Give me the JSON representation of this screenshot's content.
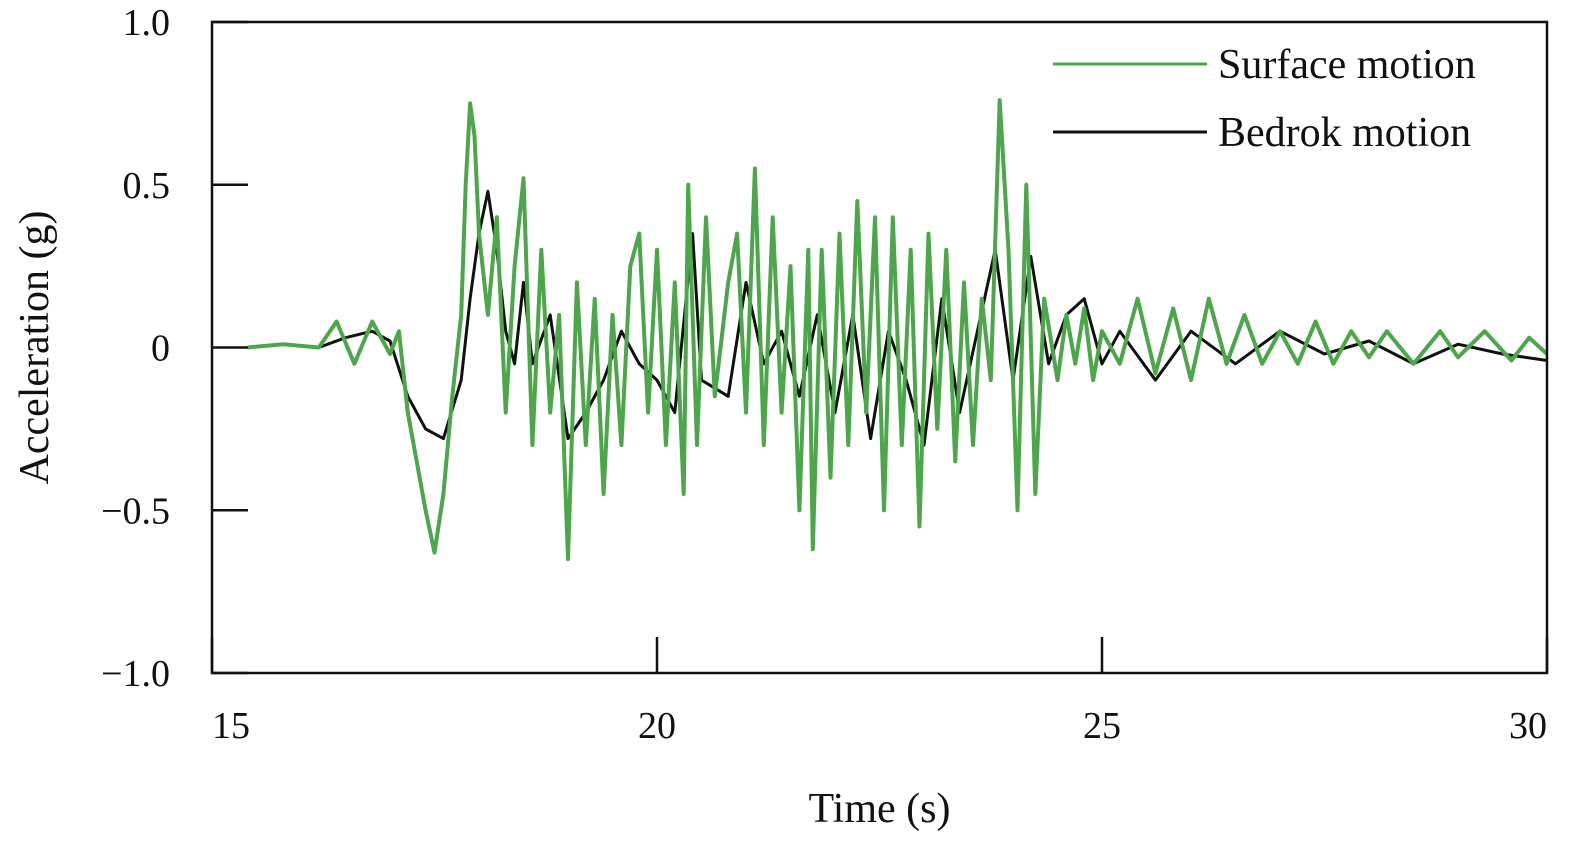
{
  "chart_data": {
    "type": "line",
    "title": "",
    "xlabel": "Time (s)",
    "ylabel": "Acceleration (g)",
    "xlim": [
      15,
      30
    ],
    "ylim": [
      -1.0,
      1.0
    ],
    "xticks": [
      {
        "value": 15,
        "label": "15"
      },
      {
        "value": 20,
        "label": "20"
      },
      {
        "value": 25,
        "label": "25"
      },
      {
        "value": 30,
        "label": "30"
      }
    ],
    "yticks": [
      {
        "value": 1.0,
        "label": "1.0"
      },
      {
        "value": 0.5,
        "label": "0.5"
      },
      {
        "value": 0,
        "label": "0"
      },
      {
        "value": -0.5,
        "label": "−0.5"
      },
      {
        "value": -1.0,
        "label": "−1.0"
      }
    ],
    "grid": false,
    "legend_position": "top-right",
    "series": [
      {
        "name": "Bedrok motion",
        "color": "#111111",
        "points": [
          [
            15.4,
            0
          ],
          [
            15.8,
            0.01
          ],
          [
            16.2,
            0
          ],
          [
            16.5,
            0.03
          ],
          [
            16.8,
            0.05
          ],
          [
            17.0,
            0.02
          ],
          [
            17.2,
            -0.15
          ],
          [
            17.4,
            -0.25
          ],
          [
            17.6,
            -0.28
          ],
          [
            17.8,
            -0.1
          ],
          [
            17.9,
            0.15
          ],
          [
            18.0,
            0.35
          ],
          [
            18.1,
            0.48
          ],
          [
            18.2,
            0.3
          ],
          [
            18.3,
            0.05
          ],
          [
            18.4,
            -0.05
          ],
          [
            18.5,
            0.2
          ],
          [
            18.6,
            -0.05
          ],
          [
            18.8,
            0.1
          ],
          [
            19.0,
            -0.28
          ],
          [
            19.2,
            -0.2
          ],
          [
            19.4,
            -0.1
          ],
          [
            19.6,
            0.05
          ],
          [
            19.8,
            -0.05
          ],
          [
            20.0,
            -0.1
          ],
          [
            20.2,
            -0.2
          ],
          [
            20.4,
            0.35
          ],
          [
            20.5,
            -0.1
          ],
          [
            20.8,
            -0.15
          ],
          [
            21.0,
            0.2
          ],
          [
            21.2,
            -0.05
          ],
          [
            21.4,
            0.05
          ],
          [
            21.6,
            -0.15
          ],
          [
            21.8,
            0.1
          ],
          [
            22.0,
            -0.2
          ],
          [
            22.2,
            0.1
          ],
          [
            22.4,
            -0.28
          ],
          [
            22.6,
            0.05
          ],
          [
            22.8,
            -0.1
          ],
          [
            23.0,
            -0.3
          ],
          [
            23.2,
            0.15
          ],
          [
            23.4,
            -0.2
          ],
          [
            23.6,
            0.05
          ],
          [
            23.8,
            0.3
          ],
          [
            24.0,
            -0.1
          ],
          [
            24.2,
            0.28
          ],
          [
            24.4,
            -0.05
          ],
          [
            24.6,
            0.1
          ],
          [
            24.8,
            0.15
          ],
          [
            25.0,
            -0.05
          ],
          [
            25.2,
            0.05
          ],
          [
            25.6,
            -0.1
          ],
          [
            26.0,
            0.05
          ],
          [
            26.5,
            -0.05
          ],
          [
            27.0,
            0.05
          ],
          [
            27.5,
            -0.02
          ],
          [
            28.0,
            0.02
          ],
          [
            28.5,
            -0.05
          ],
          [
            29.0,
            0.01
          ],
          [
            29.5,
            -0.02
          ],
          [
            30.0,
            -0.04
          ]
        ]
      },
      {
        "name": "Surface motion",
        "color": "#4ca64a",
        "points": [
          [
            15.4,
            0
          ],
          [
            15.8,
            0.01
          ],
          [
            16.2,
            0
          ],
          [
            16.4,
            0.08
          ],
          [
            16.6,
            -0.05
          ],
          [
            16.8,
            0.08
          ],
          [
            17.0,
            -0.02
          ],
          [
            17.1,
            0.05
          ],
          [
            17.2,
            -0.2
          ],
          [
            17.3,
            -0.35
          ],
          [
            17.4,
            -0.5
          ],
          [
            17.5,
            -0.63
          ],
          [
            17.6,
            -0.45
          ],
          [
            17.7,
            -0.15
          ],
          [
            17.8,
            0.1
          ],
          [
            17.85,
            0.5
          ],
          [
            17.9,
            0.75
          ],
          [
            17.95,
            0.65
          ],
          [
            18.0,
            0.35
          ],
          [
            18.1,
            0.1
          ],
          [
            18.2,
            0.4
          ],
          [
            18.3,
            -0.2
          ],
          [
            18.4,
            0.25
          ],
          [
            18.5,
            0.52
          ],
          [
            18.6,
            -0.3
          ],
          [
            18.7,
            0.3
          ],
          [
            18.8,
            -0.2
          ],
          [
            18.9,
            0.1
          ],
          [
            19.0,
            -0.65
          ],
          [
            19.1,
            0.2
          ],
          [
            19.2,
            -0.3
          ],
          [
            19.3,
            0.15
          ],
          [
            19.4,
            -0.45
          ],
          [
            19.5,
            0.1
          ],
          [
            19.6,
            -0.3
          ],
          [
            19.7,
            0.25
          ],
          [
            19.8,
            0.35
          ],
          [
            19.9,
            -0.2
          ],
          [
            20.0,
            0.3
          ],
          [
            20.1,
            -0.3
          ],
          [
            20.2,
            0.2
          ],
          [
            20.3,
            -0.45
          ],
          [
            20.35,
            0.5
          ],
          [
            20.45,
            -0.3
          ],
          [
            20.55,
            0.4
          ],
          [
            20.65,
            -0.15
          ],
          [
            20.8,
            0.2
          ],
          [
            20.9,
            0.35
          ],
          [
            21.0,
            -0.2
          ],
          [
            21.1,
            0.55
          ],
          [
            21.2,
            -0.3
          ],
          [
            21.3,
            0.4
          ],
          [
            21.4,
            -0.2
          ],
          [
            21.5,
            0.25
          ],
          [
            21.6,
            -0.5
          ],
          [
            21.7,
            0.3
          ],
          [
            21.75,
            -0.62
          ],
          [
            21.85,
            0.3
          ],
          [
            21.95,
            -0.4
          ],
          [
            22.05,
            0.35
          ],
          [
            22.15,
            -0.3
          ],
          [
            22.25,
            0.45
          ],
          [
            22.35,
            -0.2
          ],
          [
            22.45,
            0.4
          ],
          [
            22.55,
            -0.5
          ],
          [
            22.65,
            0.4
          ],
          [
            22.75,
            -0.3
          ],
          [
            22.85,
            0.3
          ],
          [
            22.95,
            -0.55
          ],
          [
            23.05,
            0.35
          ],
          [
            23.15,
            -0.25
          ],
          [
            23.25,
            0.3
          ],
          [
            23.35,
            -0.35
          ],
          [
            23.45,
            0.2
          ],
          [
            23.55,
            -0.3
          ],
          [
            23.65,
            0.15
          ],
          [
            23.75,
            -0.1
          ],
          [
            23.85,
            0.76
          ],
          [
            23.95,
            0.3
          ],
          [
            24.05,
            -0.5
          ],
          [
            24.15,
            0.5
          ],
          [
            24.25,
            -0.45
          ],
          [
            24.35,
            0.15
          ],
          [
            24.5,
            -0.1
          ],
          [
            24.6,
            0.1
          ],
          [
            24.7,
            -0.05
          ],
          [
            24.8,
            0.12
          ],
          [
            24.9,
            -0.1
          ],
          [
            25.0,
            0.05
          ],
          [
            25.2,
            -0.05
          ],
          [
            25.4,
            0.15
          ],
          [
            25.6,
            -0.08
          ],
          [
            25.8,
            0.12
          ],
          [
            26.0,
            -0.1
          ],
          [
            26.2,
            0.15
          ],
          [
            26.4,
            -0.05
          ],
          [
            26.6,
            0.1
          ],
          [
            26.8,
            -0.05
          ],
          [
            27.0,
            0.05
          ],
          [
            27.2,
            -0.05
          ],
          [
            27.4,
            0.08
          ],
          [
            27.6,
            -0.05
          ],
          [
            27.8,
            0.05
          ],
          [
            28.0,
            -0.03
          ],
          [
            28.2,
            0.05
          ],
          [
            28.5,
            -0.05
          ],
          [
            28.8,
            0.05
          ],
          [
            29.0,
            -0.03
          ],
          [
            29.3,
            0.05
          ],
          [
            29.6,
            -0.04
          ],
          [
            29.8,
            0.03
          ],
          [
            30.0,
            -0.02
          ]
        ]
      }
    ]
  }
}
